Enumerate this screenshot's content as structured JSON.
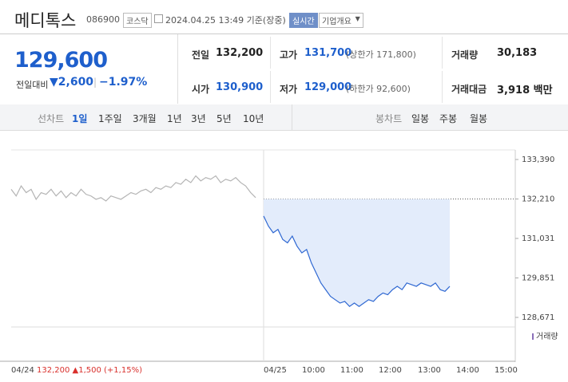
{
  "header": {
    "name": "메디톡스",
    "code": "086900",
    "market": "코스닥",
    "timestamp": "2024.04.25 13:49 기준(장중)",
    "realtime": "실시간",
    "overview": "기업개요"
  },
  "price": {
    "current": "129,600",
    "change_label": "전일대비",
    "change": "▼2,600",
    "rate": "−1.97%"
  },
  "summary": [
    [
      {
        "label": "전일",
        "value": "132,200"
      },
      {
        "label": "고가",
        "value": "131,700",
        "note": "(상한가 171,800)"
      },
      {
        "label": "거래량",
        "value": "30,183"
      }
    ],
    [
      {
        "label": "시가",
        "value": "130,900"
      },
      {
        "label": "저가",
        "value": "129,000",
        "note": "(하한가 92,600)"
      },
      {
        "label": "거래대금",
        "value": "3,918 백만"
      }
    ]
  ],
  "tabs": {
    "line_label": "선차트",
    "line": [
      "1일",
      "1주일",
      "3개월",
      "1년",
      "3년",
      "5년",
      "10년"
    ],
    "candle_label": "봉차트",
    "candle": [
      "일봉",
      "주봉",
      "월봉"
    ]
  },
  "chart": {
    "type": "line",
    "ylim": [
      128433,
      133509
    ],
    "yticks": [
      {
        "value": 133390,
        "label": "133,390"
      },
      {
        "value": 132210,
        "label": "132,210"
      },
      {
        "value": 131031,
        "label": "131,031"
      },
      {
        "value": 129851,
        "label": "129,851"
      },
      {
        "value": 128671,
        "label": "128,671"
      }
    ],
    "legend": "거래량",
    "x_labels": [
      "04/24",
      "04/25",
      "10:00",
      "11:00",
      "12:00",
      "13:00",
      "14:00",
      "15:00"
    ],
    "prev_info": "132,200 ▲1,500 (+1,15%)",
    "series": [
      {
        "color": "#b4b4b4",
        "values": [
          132500,
          132300,
          132600,
          132400,
          132500,
          132200,
          132400,
          132350,
          132500,
          132300,
          132450,
          132250,
          132400,
          132300,
          132500,
          132350,
          132300,
          132200,
          132250,
          132150,
          132300,
          132250,
          132200,
          132300,
          132400,
          132350,
          132450,
          132500,
          132400,
          132550,
          132500,
          132600,
          132550,
          132700,
          132650,
          132800,
          132700,
          132900,
          132750,
          132850,
          132800,
          132900,
          132700,
          132800,
          132750,
          132850,
          132700,
          132600,
          132400,
          132250
        ]
      },
      {
        "color": "#2f68d2",
        "values": [
          131700,
          131400,
          131200,
          131300,
          131000,
          130900,
          131100,
          130800,
          130600,
          130700,
          130300,
          130000,
          129700,
          129500,
          129300,
          129200,
          129100,
          129150,
          129000,
          129100,
          129000,
          129100,
          129200,
          129150,
          129300,
          129400,
          129350,
          129500,
          129600,
          129500,
          129700,
          129650,
          129600,
          129700,
          129650,
          129600,
          129700,
          129500,
          129450,
          129600
        ]
      }
    ]
  }
}
